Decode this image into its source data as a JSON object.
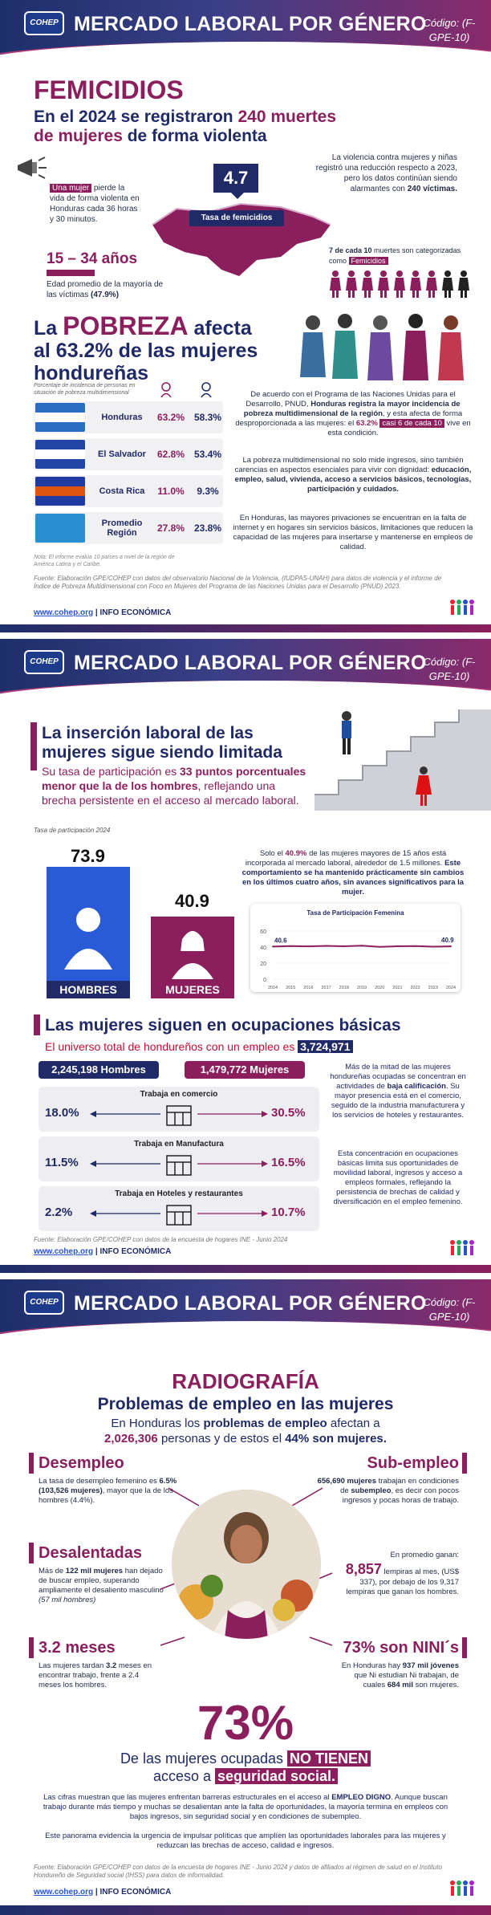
{
  "banner": {
    "logo": "COHEP",
    "title": "MERCADO LABORAL POR GÉNERO",
    "code": "Código: (F-GPE-10)"
  },
  "fem": {
    "title": "FEMICIDIOS",
    "sub1": "En el 2024 se registraron ",
    "sub_hl": "240 muertes",
    "sub2": "de mujeres",
    "sub3": " de forma violenta",
    "left_hl": "Una mujer",
    "left_txt": " pierde la vida de forma violenta en Honduras cada 36 horas y 30 minutos.",
    "rate": "4.7",
    "rate_label": "Tasa de femicidios",
    "right_txt": "La violencia contra mujeres y niñas registró una reducción respecto a 2023, pero los datos continúan siendo alarmantes con ",
    "right_hl": "240 víctimas.",
    "age_title": "15 – 34 años",
    "age_txt": "Edad promedio de la mayoría de las víctimas ",
    "age_hl": "(47.9%)",
    "seven_txt1": "7 de cada 10",
    "seven_txt2": " muertes son categorizadas como ",
    "seven_tag": "Femicidios"
  },
  "pob": {
    "t1": "La ",
    "t2": "POBREZA",
    "t3": " afecta",
    "t4": "al 63.2% de las mujeres",
    "t5": "hondureñas",
    "col_note": "Porcentaje de incidencia de personas en situación de pobreza multidimensional",
    "rows": [
      {
        "country": "Honduras",
        "f": "63.2%",
        "m": "58.3%"
      },
      {
        "country": "El Salvador",
        "f": "62.8%",
        "m": "53.4%"
      },
      {
        "country": "Costa Rica",
        "f": "11.0%",
        "m": "9.3%"
      },
      {
        "country": "Promedio Región",
        "f": "27.8%",
        "m": "23.8%"
      }
    ],
    "note": "Nota: El informe evalúa 10 países a nivel de la región de América Latina y el Caribe.",
    "p1a": "De acuerdo con el Programa de las Naciones Unidas para el Desarrollo, PNUD, ",
    "p1b": "Honduras registra la mayor incidencia de pobreza multidimensional de la región",
    "p1c": ", y esta afecta de forma desproporcionada a las mujeres: el ",
    "p1d": "63.2%",
    "p1e": "casi 6 de cada 10",
    "p1f": " vive en esta condición.",
    "p2a": "La pobreza multidimensional no solo mide ingresos, sino también carencias en aspectos esenciales para vivir con dignidad: ",
    "p2b": "educación, empleo, salud, vivienda, acceso a servicios básicos, tecnologías, participación y cuidados.",
    "p3": "En Honduras, las mayores privaciones se encuentran en la falta de internet y en hogares sin servicios básicos, limitaciones que reducen la capacidad de las mujeres para insertarse y mantenerse en empleos de calidad.",
    "source": "Fuente: Elaboración GPE/COHEP con datos del observatorio Nacional de la Violencia, (IUDPAS-UNAH) para datos de violencia y el informe de Índice de Pobreza Multidimensional con Foco en Mujeres del Programa de las Naciones Unidas para el Desarrollo (PNUD) 2023."
  },
  "web": {
    "url": "www.cohep.org",
    "sep": " | ",
    "label": "INFO ECONÓMICA"
  },
  "ins": {
    "title1": "La inserción laboral de las",
    "title2": "mujeres sigue siendo limitada",
    "s1": "Su tasa de participación es ",
    "s2": "33 puntos porcentuales menor que la de los hombres",
    "s3": ", reflejando una brecha persistente en el acceso al mercado laboral.",
    "rate_note": "Tasa de participación 2024",
    "men_val": "73.9",
    "women_val": "40.9",
    "men_label": "HOMBRES",
    "women_label": "MUJERES",
    "r1a": "Solo el ",
    "r1b": "40.9%",
    "r1c": " de las mujeres mayores de 15 años está incorporada al mercado laboral, alrededor de 1.5 millones. ",
    "r1d": "Este comportamiento se ha mantenido prácticamente sin cambios en los últimos cuatro años, sin avances significativos para la mujer."
  },
  "chart_data": {
    "type": "line",
    "title": "Tasa de Participación Femenina",
    "x": [
      "2014",
      "2015",
      "2016",
      "2017",
      "2018",
      "2019",
      "2020",
      "2021",
      "2022",
      "2023",
      "2024"
    ],
    "values": [
      40.6,
      41.2,
      40.9,
      41.5,
      41.0,
      41.8,
      40.2,
      41.0,
      41.3,
      40.5,
      40.9
    ],
    "ylim": [
      0,
      60
    ],
    "yticks": [
      "0",
      "20",
      "40",
      "60"
    ],
    "labels": {
      "first": "40.6",
      "last": "40.9"
    }
  },
  "occ": {
    "title": "Las mujeres siguen en ocupaciones básicas",
    "sub": "El universo total de hondureños con un empleo es ",
    "total": "3,724,971",
    "men": "2,245,198 Hombres",
    "women": "1,479,772 Mujeres",
    "rows": [
      {
        "label": "Trabaja en comercio",
        "m": "18.0%",
        "w": "30.5%"
      },
      {
        "label": "Trabaja en Manufactura",
        "m": "11.5%",
        "w": "16.5%"
      },
      {
        "label": "Trabaja en Hoteles y restaurantes",
        "m": "2.2%",
        "w": "10.7%"
      }
    ],
    "r1a": "Más de la mitad de las mujeres hondureñas ocupadas se concentran en actividades de ",
    "r1b": "baja calificación",
    "r1c": ". Su mayor presencia está en el comercio, seguido de la industria manufacturera y los servicios de hoteles y restaurantes.",
    "r2": "Esta concentración en ocupaciones básicas limita sus oportunidades de movilidad laboral, ingresos y acceso a empleos formales, reflejando la persistencia de brechas de calidad y diversificación en el empleo femenino.",
    "source": "Fuente: Elaboración GPE/COHEP con datos de la encuesta de hogares INE - Junio 2024"
  },
  "rad": {
    "title": "RADIOGRAFÍA",
    "sub": "Problemas de empleo en las mujeres",
    "l1a": "En Honduras los ",
    "l1b": "problemas de empleo",
    "l1c": " afectan a",
    "l2a": "2,026,306",
    "l2b": " personas y de estos el ",
    "l2c": "44% son mujeres.",
    "des_t": "Desempleo",
    "des_a": "La tasa de desempleo femenino es ",
    "des_b": "6.5% (103,526 mujeres)",
    "des_c": ", mayor que la de los hombres (4.4%).",
    "desa_t": "Desalentadas",
    "desa_a": "Más de ",
    "desa_b": "122 mil mujeres",
    "desa_c": " han dejado de buscar empleo, superando ampliamente el desaliento masculino ",
    "desa_d": "(57 mil hombres)",
    "mes_t": "3.2 meses",
    "mes_a": "Las mujeres tardan ",
    "mes_b": "3.2",
    "mes_c": " meses en encontrar trabajo, frente a 2.4 meses los hombres.",
    "sub_t": "Sub-empleo",
    "sub_a": "656,690 mujeres",
    "sub_b": " trabajan en condiciones de ",
    "sub_c": "subempleo",
    "sub_d": ", es decir con pocos ingresos y pocas horas de trabajo.",
    "pay_a": "En promedio ganan:",
    "pay_b": "8,857",
    "pay_c": " lempiras al mes, (US$ 337), por debajo de los 9,317 lempiras que ganan los hombres.",
    "nini_t": "73% son NINI´s",
    "nini_a": "En Honduras hay ",
    "nini_b": "937 mil jóvenes",
    "nini_c": " que Ni estudian Ni trabajan, de cuales ",
    "nini_d": "684 mil",
    "nini_e": " son mujeres.",
    "big": "73%",
    "big_a": "De las mujeres ocupadas ",
    "big_b": "NO TIENEN",
    "big_c": "acceso a ",
    "big_d": "seguridad social.",
    "p1a": "Las cifras muestran que las mujeres enfrentan barreras estructurales en el acceso al ",
    "p1b": "EMPLEO DIGNO",
    "p1c": ". Aunque buscan trabajo durante más tiempo y muchas se desalientan ante la falta de oportunidades, la mayoría termina en empleos con bajos ingresos, sin seguridad social y en condiciones de subempleo.",
    "p2": "Este panorama evidencia la urgencia de impulsar políticas que amplíen las oportunidades laborales para las mujeres y reduzcan las brechas de acceso, calidad e ingresos.",
    "source": "Fuente: Elaboración GPE/COHEP con datos de la encuesta de hogares INE - Junio 2024 y datos de afiliados al régimen de salud en el Instituto Hondureño de Seguridad social (IHSS) para datos de informalidad."
  },
  "colors": {
    "navy": "#1f2a66",
    "purple": "#8b1f5e",
    "blue": "#2a5bd7"
  }
}
